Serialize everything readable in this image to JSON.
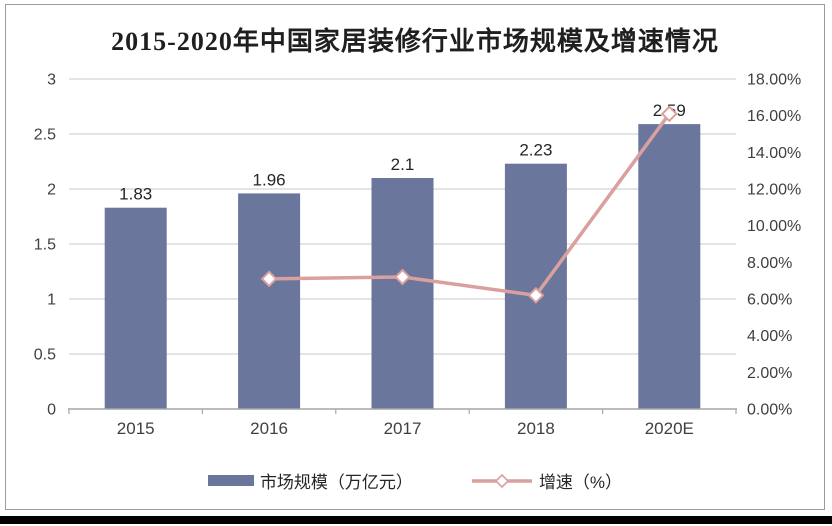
{
  "chart_data": {
    "type": "bar",
    "combo": "bar+line dual axis",
    "title": "2015-2020年中国家居装修行业市场规模及增速情况",
    "categories": [
      "2015",
      "2016",
      "2017",
      "2018",
      "2020E"
    ],
    "series": [
      {
        "name": "市场规模（万亿元）",
        "type": "bar",
        "axis": "left",
        "values": [
          1.83,
          1.96,
          2.1,
          2.23,
          2.59
        ],
        "labels": [
          "1.83",
          "1.96",
          "2.1",
          "2.23",
          "2.59"
        ]
      },
      {
        "name": "增速（%）",
        "type": "line",
        "axis": "right",
        "marker": "diamond-white-fill",
        "values": [
          null,
          7.1,
          7.2,
          6.2,
          16.1
        ]
      }
    ],
    "left_axis": {
      "min": 0,
      "max": 3,
      "step": 0.5,
      "ticks": [
        "0",
        "0.5",
        "1",
        "1.5",
        "2",
        "2.5",
        "3"
      ]
    },
    "right_axis": {
      "min": 0,
      "max": 18,
      "step": 2,
      "ticks": [
        "0.00%",
        "2.00%",
        "4.00%",
        "6.00%",
        "8.00%",
        "10.00%",
        "12.00%",
        "14.00%",
        "16.00%",
        "18.00%"
      ]
    },
    "grid": true,
    "legend_position": "bottom"
  },
  "colors": {
    "bar": "#6A769C",
    "line": "#D9A09E",
    "marker_fill": "#FFFFFF",
    "grid": "#C9C9C9",
    "axis": "#A6A6A6",
    "tick_text": "#404040",
    "data_label": "#262626",
    "frame_border": "#9C9C9C",
    "bottom_bar": "#000000"
  }
}
